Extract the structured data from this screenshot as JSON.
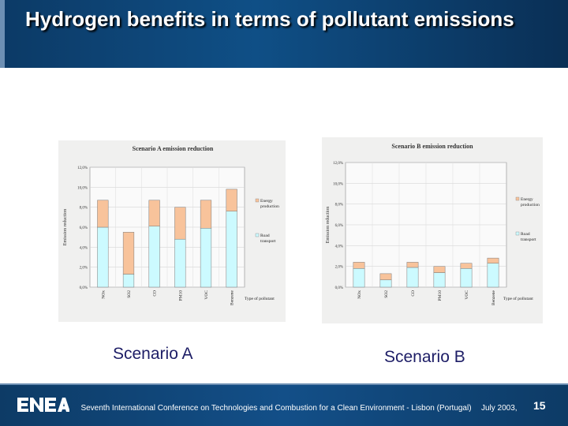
{
  "title": "Hydrogen benefits in terms of pollutant emissions",
  "scenario_a_label": "Scenario A",
  "scenario_b_label": "Scenario B",
  "footer": {
    "conference": "Seventh International Conference on Technologies and Combustion for a Clean Environment - Lisbon (Portugal)",
    "date": "July 2003,",
    "page": "15",
    "logo_text": "ENEA"
  },
  "colors": {
    "road": "#ccfaff",
    "energy": "#f8c39b",
    "panel": "#f0f0ef",
    "title_bg": "#0f4f86"
  },
  "chart_data": [
    {
      "type": "bar",
      "stacked": true,
      "title": "Scenario A emission reduction",
      "ylabel": "Emission reduction",
      "xlabel": "Type of pollutant",
      "categories": [
        "NOx",
        "SO2",
        "CO",
        "PM10",
        "VOC",
        "Benzene"
      ],
      "yticks": [
        "0,0%",
        "2,0%",
        "4,0%",
        "6,0%",
        "8,0%",
        "10,0%",
        "12,0%"
      ],
      "ylim": [
        0,
        12
      ],
      "series": [
        {
          "name": "Road transport",
          "values": [
            6.0,
            1.3,
            6.1,
            4.8,
            5.9,
            7.6
          ]
        },
        {
          "name": "Energy production",
          "values": [
            2.7,
            4.2,
            2.6,
            3.2,
            2.8,
            2.2
          ]
        }
      ],
      "legend_labels": [
        "Energy production",
        "Road transport"
      ]
    },
    {
      "type": "bar",
      "stacked": true,
      "title": "Scenario B emission reduction",
      "ylabel": "Emission reduction",
      "xlabel": "Type of pollutant",
      "categories": [
        "NOx",
        "SO2",
        "CO",
        "PM10",
        "VOC",
        "Benzene"
      ],
      "yticks": [
        "0,0%",
        "2,0%",
        "4,0%",
        "6,0%",
        "8,0%",
        "10,0%",
        "12,0%"
      ],
      "ylim": [
        0,
        12
      ],
      "series": [
        {
          "name": "Road transport",
          "values": [
            1.8,
            0.7,
            1.9,
            1.4,
            1.8,
            2.3
          ]
        },
        {
          "name": "Energy production",
          "values": [
            0.6,
            0.6,
            0.5,
            0.6,
            0.5,
            0.5
          ]
        }
      ],
      "legend_labels": [
        "Energy production",
        "Road transport"
      ]
    }
  ]
}
